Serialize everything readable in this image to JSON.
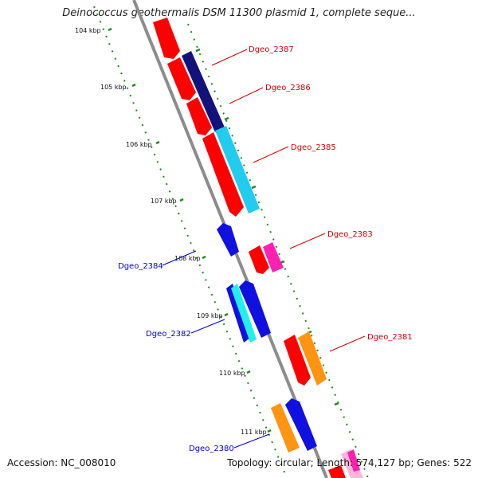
{
  "title": "Deinococcus geothermalis DSM 11300 plasmid 1, complete seque...",
  "footer": {
    "accession": "Accession: NC_008010",
    "topology": "Topology: circular; Length: 574,127 bp; Genes: 522"
  },
  "kbp_ticks": [
    {
      "label": "104 kbp"
    },
    {
      "label": "105 kbp"
    },
    {
      "label": "106 kbp"
    },
    {
      "label": "107 kbp"
    },
    {
      "label": "108 kbp"
    },
    {
      "label": "109 kbp"
    },
    {
      "label": "110 kbp"
    },
    {
      "label": "111 kbp"
    }
  ],
  "gene_labels": [
    {
      "text": "Dgeo_2387",
      "color": "#d40000"
    },
    {
      "text": "Dgeo_2386",
      "color": "#d40000"
    },
    {
      "text": "Dgeo_2385",
      "color": "#d40000"
    },
    {
      "text": "Dgeo_2383",
      "color": "#d40000"
    },
    {
      "text": "Dgeo_2381",
      "color": "#d40000"
    },
    {
      "text": "Dgeo_2384",
      "color": "#0000cc"
    },
    {
      "text": "Dgeo_2382",
      "color": "#0000cc"
    },
    {
      "text": "Dgeo_2380",
      "color": "#0000cc"
    }
  ],
  "colors": {
    "backbone": "#8c8c8c",
    "dotted": "#1f8a1f",
    "red": "#ff0000",
    "navy": "#12127a",
    "cyan": "#22ccee",
    "blue": "#1010e0",
    "magenta": "#ff1fb0",
    "orange": "#ff9411",
    "pink": "#ffb5d8"
  }
}
